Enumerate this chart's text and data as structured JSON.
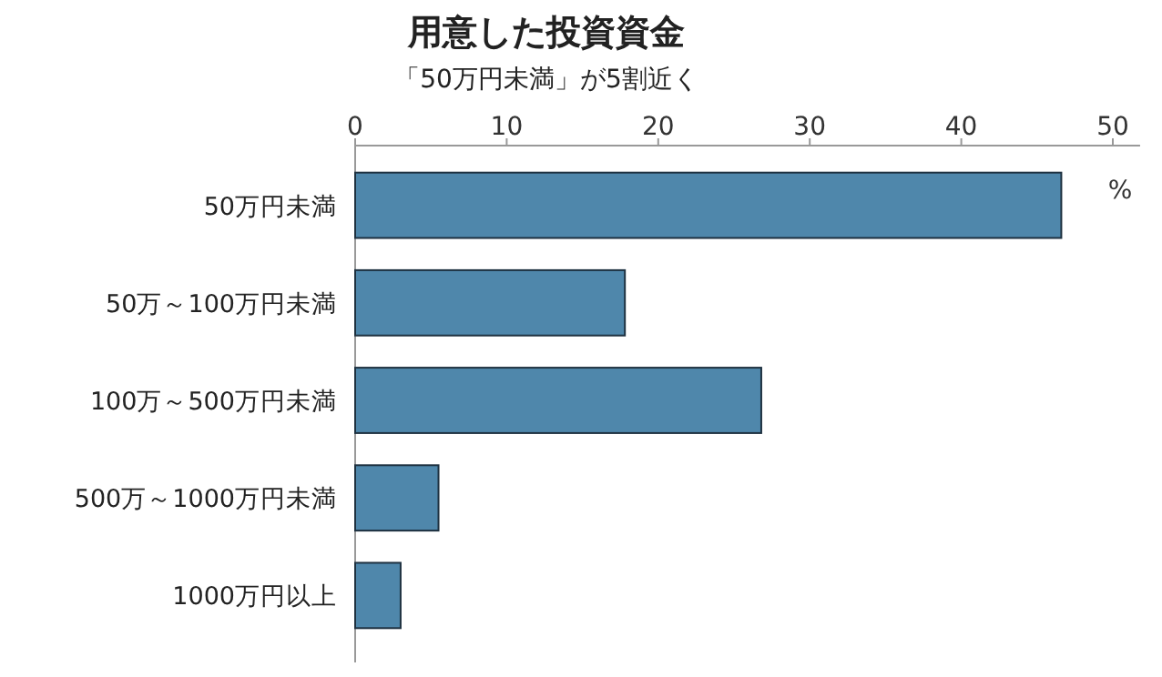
{
  "chart_data": {
    "type": "bar",
    "orientation": "horizontal",
    "title": "用意した投資資金",
    "subtitle": "「50万円未満」が5割近く",
    "xlabel": "%",
    "categories": [
      "50万円未満",
      "50万～100万円未満",
      "100万～500万円未満",
      "500万～1000万円未満",
      "1000万円以上"
    ],
    "values": [
      46.6,
      17.8,
      26.8,
      5.5,
      3.0
    ],
    "color": "#4f87ab",
    "xlim": [
      0,
      51.8
    ],
    "xticks": [
      0,
      10,
      20,
      30,
      40,
      50
    ],
    "grid": false
  }
}
